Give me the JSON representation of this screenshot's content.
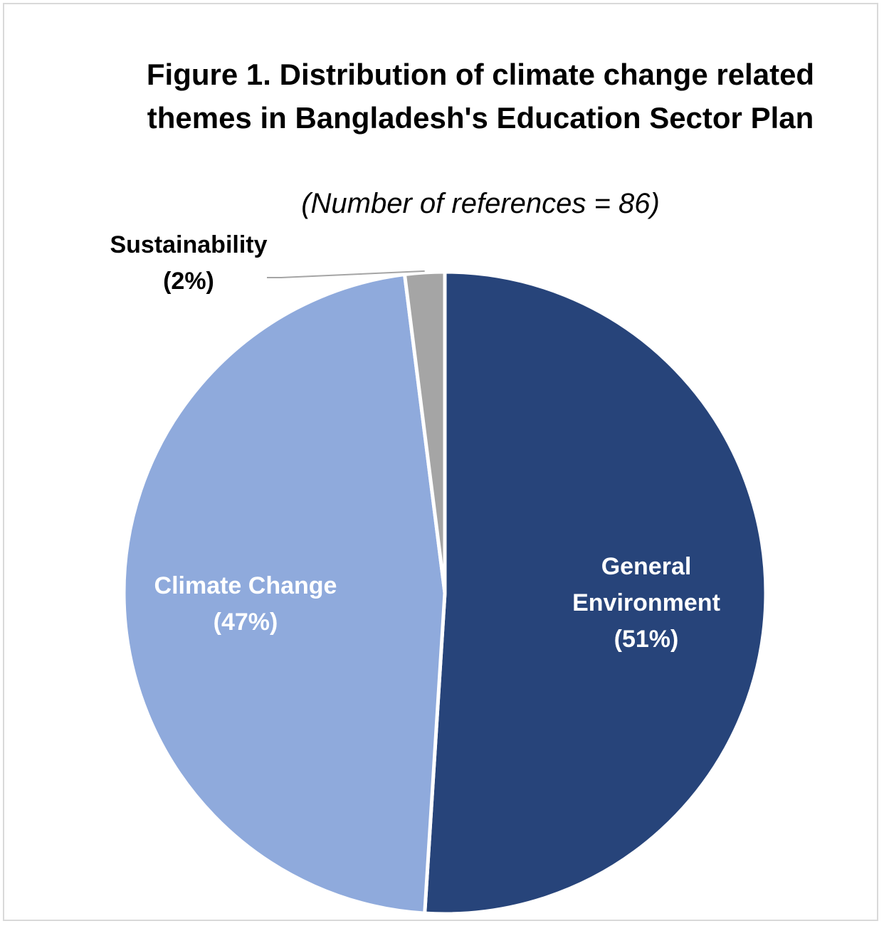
{
  "chart_data": {
    "type": "pie",
    "title": "Figure 1. Distribution of climate change related themes in Bangladesh's Education Sector Plan",
    "subtitle": "(Number of references = 86)",
    "slices": [
      {
        "name": "General Environment",
        "label_lines": [
          "General",
          "Environment",
          "(51%)"
        ],
        "value": 51,
        "color": "#27447A",
        "label_color": "#FFFFFF"
      },
      {
        "name": "Climate Change",
        "label_lines": [
          "Climate Change",
          "(47%)"
        ],
        "value": 47,
        "color": "#8FAADC",
        "label_color": "#FFFFFF"
      },
      {
        "name": "Sustainability",
        "label_lines": [
          "Sustainability",
          "(2%)"
        ],
        "value": 2,
        "color": "#A5A5A5",
        "label_color": "#000000"
      }
    ],
    "start_angle": "top, clockwise",
    "legend": "none"
  }
}
